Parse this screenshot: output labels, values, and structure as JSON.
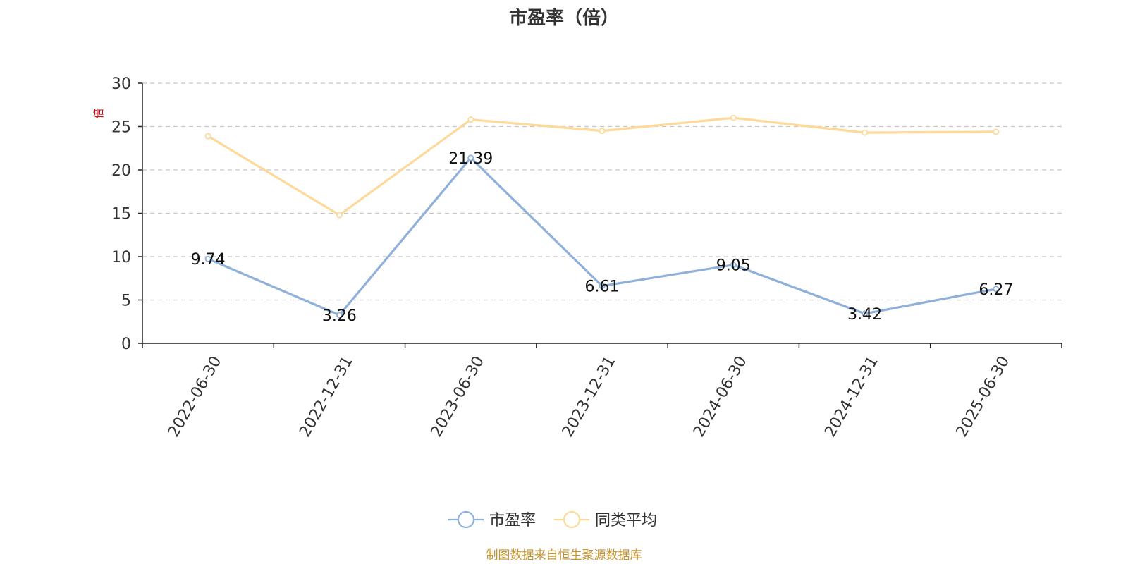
{
  "chart_data": {
    "type": "line",
    "title": "市盈率（倍）",
    "ylabel": "倍",
    "categories": [
      "2022-06-30",
      "2022-12-31",
      "2023-06-30",
      "2023-12-31",
      "2024-06-30",
      "2024-12-31",
      "2025-06-30"
    ],
    "ylim": [
      0,
      30
    ],
    "yticks": [
      0,
      5,
      10,
      15,
      20,
      25,
      30
    ],
    "grid": true,
    "legend_position": "bottom-center",
    "series": [
      {
        "name": "市盈率",
        "color": "#8eb0d9",
        "values": [
          9.74,
          3.26,
          21.39,
          6.61,
          9.05,
          3.42,
          6.27
        ],
        "labels": [
          "9.74",
          "3.26",
          "21.39",
          "6.61",
          "9.05",
          "3.42",
          "6.27"
        ]
      },
      {
        "name": "同类平均",
        "color": "#fdd99a",
        "values": [
          23.9,
          14.8,
          25.8,
          24.5,
          26.0,
          24.3,
          24.4
        ]
      }
    ],
    "source": "制图数据来自恒生聚源数据库"
  }
}
